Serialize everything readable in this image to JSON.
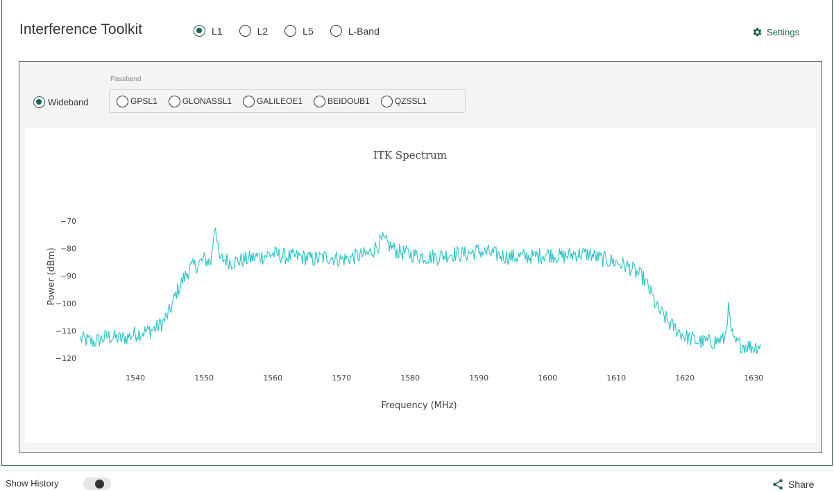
{
  "app": {
    "title": "Interference Toolkit",
    "accent_color": "#1f5f52",
    "trace_color": "#2fc6c6"
  },
  "bands": {
    "options": [
      "L1",
      "L2",
      "L5",
      "L-Band"
    ],
    "selected": "L1"
  },
  "settings": {
    "label": "Settings",
    "icon": "gear-icon"
  },
  "mode": {
    "wideband_label": "Wideband",
    "wideband_selected": true,
    "passband_label": "Passband",
    "passband_options": [
      "GPSL1",
      "GLONASSL1",
      "GALILEOE1",
      "BEIDOUB1",
      "QZSSL1"
    ]
  },
  "footer": {
    "show_history_label": "Show History",
    "history_enabled": false,
    "share_label": "Share",
    "share_icon": "share-icon"
  },
  "chart_data": {
    "type": "line",
    "title": "ITK Spectrum",
    "xlabel": "Frequency (MHz)",
    "ylabel": "Power (dBm)",
    "xlim": [
      1532,
      1632
    ],
    "ylim": [
      -122,
      -66
    ],
    "xticks": [
      1540,
      1550,
      1560,
      1570,
      1580,
      1590,
      1600,
      1610,
      1620,
      1630
    ],
    "yticks": [
      -70,
      -80,
      -90,
      -100,
      -110,
      -120
    ],
    "grid": false,
    "series": [
      {
        "x": [
          1532,
          1534,
          1536,
          1538,
          1540,
          1542,
          1543,
          1544,
          1545,
          1546,
          1547,
          1548,
          1549,
          1550,
          1551,
          1551.6,
          1552.2,
          1553,
          1554,
          1556,
          1558,
          1560,
          1562,
          1564,
          1566,
          1568,
          1570,
          1572,
          1574,
          1576,
          1578,
          1580,
          1582,
          1584,
          1586,
          1588,
          1590,
          1592,
          1594,
          1596,
          1598,
          1600,
          1602,
          1604,
          1606,
          1608,
          1610,
          1612,
          1614,
          1615,
          1616,
          1617,
          1618,
          1619,
          1620,
          1622,
          1624,
          1625.8,
          1626.3,
          1627,
          1628,
          1630,
          1631
        ],
        "y": [
          -113,
          -114,
          -112,
          -113,
          -111,
          -110,
          -109,
          -107,
          -103,
          -96,
          -91,
          -87,
          -86,
          -84,
          -85,
          -70,
          -84,
          -84,
          -85,
          -84,
          -83,
          -82,
          -83,
          -83,
          -84,
          -83,
          -84,
          -83,
          -82,
          -77,
          -81,
          -82,
          -83,
          -83,
          -82,
          -82,
          -81,
          -82,
          -83,
          -83,
          -83,
          -82,
          -83,
          -82,
          -82,
          -84,
          -85,
          -87,
          -91,
          -96,
          -102,
          -105,
          -108,
          -110,
          -112,
          -114,
          -114,
          -113,
          -102,
          -114,
          -115,
          -116,
          -115
        ]
      }
    ]
  }
}
